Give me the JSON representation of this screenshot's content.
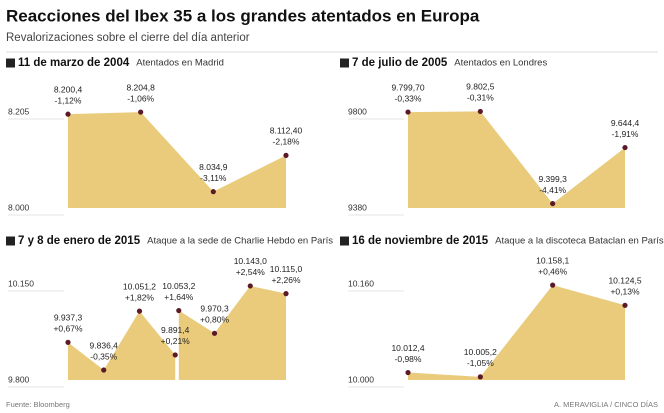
{
  "header": {
    "title": "Reacciones del Ibex 35 a los grandes atentados en Europa",
    "subtitle": "Revalorizaciones sobre el cierre del día anterior"
  },
  "footer": {
    "source": "Fuente: Bloomberg",
    "credit": "A. MERAVIGLIA / CINCO DÍAS"
  },
  "chart_data": [
    {
      "type": "area",
      "title": "11 de marzo de 2004",
      "subtitle": "Atentados en Madrid",
      "values": [
        8200.4,
        8204.8,
        8034.9,
        8112.4
      ],
      "value_labels": [
        "8.200,4",
        "8.204,8",
        "8.034,9",
        "8.112,40"
      ],
      "change_labels": [
        "-1,12%",
        "-1,06%",
        "-3,11%",
        "-2,18%"
      ],
      "ylim": [
        8000,
        8205
      ],
      "yticks": [
        {
          "value": 8205,
          "label": "8.205"
        },
        {
          "value": 8000,
          "label": "8.000"
        }
      ],
      "color": "#e9cb7b",
      "marker_color": "#5b1a28"
    },
    {
      "type": "area",
      "title": "7 de julio de 2005",
      "subtitle": "Atentados en Londres",
      "values": [
        9799.7,
        9802.5,
        9399.3,
        9644.4
      ],
      "value_labels": [
        "9.799,70",
        "9.802,5",
        "9.399,3",
        "9.644,4"
      ],
      "change_labels": [
        "-0,33%",
        "-0,31%",
        "-4,41%",
        "-1,91%"
      ],
      "ylim": [
        9380,
        9800
      ],
      "yticks": [
        9800,
        9380
      ],
      "color": "#e9cb7b",
      "marker_color": "#5b1a28"
    },
    {
      "type": "area",
      "title": "7 y 8 de enero de 2015",
      "subtitle": "Ataque a la sede de Charlie Hebdo en París",
      "values": [
        9937.3,
        9836.4,
        10051.2,
        9891.4,
        null,
        10053.2,
        9970.3,
        10143.0,
        10115.0
      ],
      "value_labels": [
        "9.937,3",
        "9.836,4",
        "10.051,2",
        "9.891,4",
        null,
        "10.053,2",
        "9.970,3",
        "10.143,0",
        "10.115,0"
      ],
      "change_labels": [
        "+0,67%",
        "-0,35%",
        "+1,82%",
        "+0,21%",
        null,
        "+1,64%",
        "+0,80%",
        "+2,54%",
        "+2,26%"
      ],
      "ylim": [
        9800,
        10150
      ],
      "yticks": [
        {
          "value": 10150,
          "label": "10.150"
        },
        {
          "value": 9800,
          "label": "9.800"
        }
      ],
      "color": "#e9cb7b",
      "marker_color": "#5b1a28"
    },
    {
      "type": "area",
      "title": "16 de noviembre de 2015",
      "subtitle": "Ataque a la discoteca Bataclan en París",
      "values": [
        10012.4,
        10005.2,
        10158.1,
        10124.5
      ],
      "value_labels": [
        "10.012,4",
        "10.005,2",
        "10.158,1",
        "10.124,5"
      ],
      "change_labels": [
        "-0,98%",
        "-1,05%",
        "+0,46%",
        "+0,13%"
      ],
      "ylim": [
        10000,
        10160
      ],
      "yticks": [
        {
          "value": 10160,
          "label": "10.160"
        },
        {
          "value": 10000,
          "label": "10.000"
        }
      ],
      "color": "#e9cb7b",
      "marker_color": "#5b1a28"
    }
  ]
}
